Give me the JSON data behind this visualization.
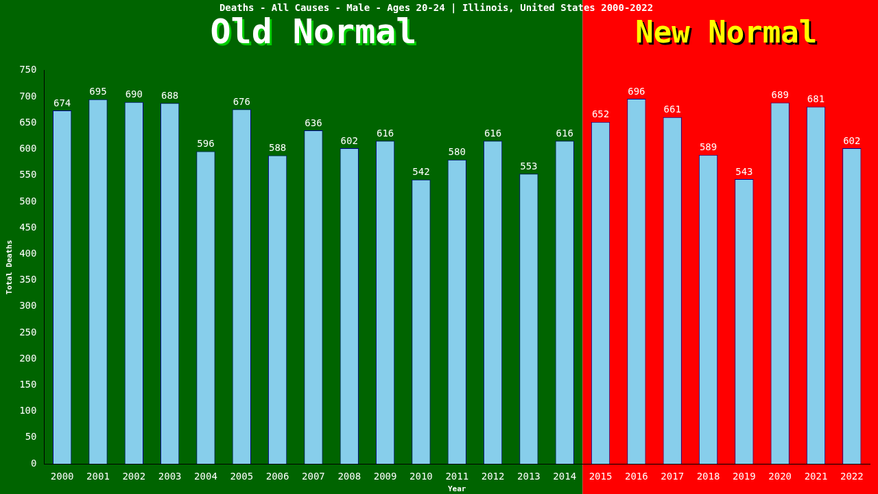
{
  "chart_data": {
    "type": "bar",
    "title": "Deaths - All Causes - Male - Ages 20-24 | Illinois, United States 2000-2022",
    "xlabel": "Year",
    "ylabel": "Total Deaths",
    "categories": [
      "2000",
      "2001",
      "2002",
      "2003",
      "2004",
      "2005",
      "2006",
      "2007",
      "2008",
      "2009",
      "2010",
      "2011",
      "2012",
      "2013",
      "2014",
      "2015",
      "2016",
      "2017",
      "2018",
      "2019",
      "2020",
      "2021",
      "2022"
    ],
    "values": [
      674,
      695,
      690,
      688,
      596,
      676,
      588,
      636,
      602,
      616,
      542,
      580,
      616,
      553,
      616,
      652,
      696,
      661,
      589,
      543,
      689,
      681,
      602
    ],
    "color": "#87ceeb",
    "ylim": [
      0,
      750
    ],
    "yticks": [
      0,
      50,
      100,
      150,
      200,
      250,
      300,
      350,
      400,
      450,
      500,
      550,
      600,
      650,
      700,
      750
    ],
    "grid": false,
    "legend": false,
    "data_labels": true,
    "bands": [
      {
        "axis": "x",
        "from": "2000",
        "to": "2014",
        "label": "Old Normal",
        "color": "#006400"
      },
      {
        "axis": "x",
        "from": "2015",
        "to": "2022",
        "label": "New Normal",
        "color": "#ff0000"
      }
    ]
  }
}
